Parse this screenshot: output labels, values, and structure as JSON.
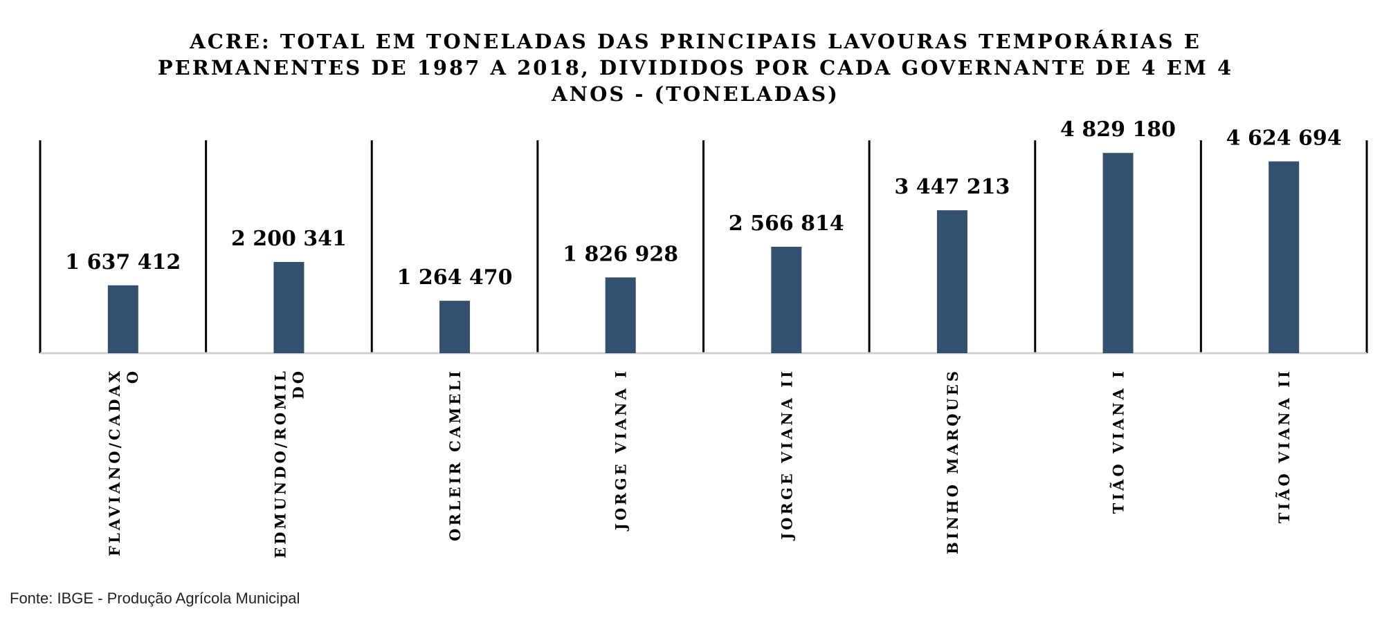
{
  "chart_data": {
    "type": "bar",
    "title_lines": [
      "ACRE:  TOTAL EM TONELADAS DAS PRINCIPAIS LAVOURAS TEMPORÁRIAS E",
      "PERMANENTES DE 1987 A 2018, DIVIDIDOS POR CADA GOVERNANTE DE 4 EM 4",
      "ANOS - (TONELADAS)"
    ],
    "categories": [
      "FLAVIANO/CADAXO",
      "EDMUNDO/ROMILDO",
      "ORLEIR CAMELI",
      "JORGE VIANA I",
      "JORGE VIANA II",
      "BINHO MARQUES",
      "TIÃO VIANA I",
      "TIÃO VIANA II"
    ],
    "category_label_lines": [
      [
        "FLAVIANO/CADAX",
        "O"
      ],
      [
        "EDMUNDO/ROMIL",
        "DO"
      ],
      [
        "ORLEIR CAMELI"
      ],
      [
        "JORGE VIANA I"
      ],
      [
        "JORGE VIANA II"
      ],
      [
        "BINHO MARQUES"
      ],
      [
        "TIÃO VIANA I"
      ],
      [
        "TIÃO VIANA II"
      ]
    ],
    "values": [
      1637412,
      2200341,
      1264470,
      1826928,
      2566814,
      3447213,
      4829180,
      4624694
    ],
    "data_labels": [
      "1 637 412",
      "2 200 341",
      "1 264 470",
      "1 826 928",
      "2 566 814",
      "3 447 213",
      "4 829 180",
      "4 624 694"
    ],
    "xlabel": "",
    "ylabel": "",
    "ylim": [
      0,
      6000000
    ],
    "bar_color": "#34506f",
    "axis_color": "#d0d0d0",
    "divider_color": "#000000",
    "grid": false,
    "legend": false
  },
  "source_note": "Fonte: IBGE - Produção Agrícola Municipal"
}
